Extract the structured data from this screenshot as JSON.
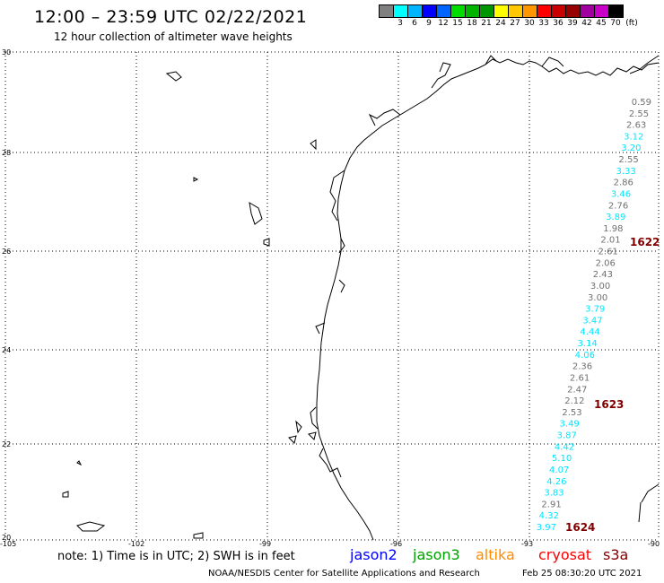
{
  "header": {
    "title": "12:00 – 23:59 UTC 02/22/2021",
    "subtitle": "12 hour collection of altimeter wave heights"
  },
  "legend": {
    "swatches": [
      {
        "color": "#808080",
        "label": ""
      },
      {
        "color": "#00ffff",
        "label": "3"
      },
      {
        "color": "#00b4ff",
        "label": "6"
      },
      {
        "color": "#0000ff",
        "label": "9"
      },
      {
        "color": "#0064ff",
        "label": "12"
      },
      {
        "color": "#00dc00",
        "label": "15"
      },
      {
        "color": "#00b400",
        "label": "18"
      },
      {
        "color": "#009600",
        "label": "21"
      },
      {
        "color": "#ffff00",
        "label": "24"
      },
      {
        "color": "#ffc800",
        "label": "27"
      },
      {
        "color": "#ff9600",
        "label": "30"
      },
      {
        "color": "#ff0000",
        "label": "33"
      },
      {
        "color": "#c80000",
        "label": "36"
      },
      {
        "color": "#960000",
        "label": "39"
      },
      {
        "color": "#a000a0",
        "label": "42"
      },
      {
        "color": "#c800c8",
        "label": "45"
      },
      {
        "color": "#000000",
        "label": "70"
      }
    ],
    "unit": "(ft)"
  },
  "map": {
    "lat_labels": [
      "30",
      "28",
      "26",
      "24",
      "22",
      "20"
    ],
    "lon_labels": [
      "-105",
      "-102",
      "-99",
      "-96",
      "-93",
      "-90"
    ],
    "pass_ids": [
      "1622",
      "1623",
      "1624"
    ],
    "colors": {
      "cyan": "#00e5ff",
      "gray": "#707070",
      "passid": "#800000"
    },
    "wave_heights": [
      {
        "v": "0.59",
        "c": "gray"
      },
      {
        "v": "2.55",
        "c": "gray"
      },
      {
        "v": "2.63",
        "c": "gray"
      },
      {
        "v": "3.12",
        "c": "cyan"
      },
      {
        "v": "3.20",
        "c": "cyan"
      },
      {
        "v": "2.55",
        "c": "gray"
      },
      {
        "v": "3.33",
        "c": "cyan"
      },
      {
        "v": "2.86",
        "c": "gray"
      },
      {
        "v": "3.46",
        "c": "cyan"
      },
      {
        "v": "2.76",
        "c": "gray"
      },
      {
        "v": "3.89",
        "c": "cyan"
      },
      {
        "v": "1.98",
        "c": "gray"
      },
      {
        "v": "2.01",
        "c": "gray"
      },
      {
        "v": "2.61",
        "c": "gray"
      },
      {
        "v": "2.06",
        "c": "gray"
      },
      {
        "v": "2.43",
        "c": "gray"
      },
      {
        "v": "3.00",
        "c": "gray"
      },
      {
        "v": "3.00",
        "c": "gray"
      },
      {
        "v": "3.79",
        "c": "cyan"
      },
      {
        "v": "3.47",
        "c": "cyan"
      },
      {
        "v": "4.44",
        "c": "cyan"
      },
      {
        "v": "3.14",
        "c": "cyan"
      },
      {
        "v": "4.06",
        "c": "cyan"
      },
      {
        "v": "2.36",
        "c": "gray"
      },
      {
        "v": "2.61",
        "c": "gray"
      },
      {
        "v": "2.47",
        "c": "gray"
      },
      {
        "v": "2.12",
        "c": "gray"
      },
      {
        "v": "2.53",
        "c": "gray"
      },
      {
        "v": "3.49",
        "c": "cyan"
      },
      {
        "v": "3.87",
        "c": "cyan"
      },
      {
        "v": "4.42",
        "c": "cyan"
      },
      {
        "v": "5.10",
        "c": "cyan"
      },
      {
        "v": "4.07",
        "c": "cyan"
      },
      {
        "v": "4.26",
        "c": "cyan"
      },
      {
        "v": "3.83",
        "c": "cyan"
      },
      {
        "v": "2.91",
        "c": "gray"
      },
      {
        "v": "4.32",
        "c": "cyan"
      },
      {
        "v": "3.97",
        "c": "cyan"
      }
    ]
  },
  "footer": {
    "note": "note: 1) Time is in UTC; 2) SWH is in feet",
    "satellites": [
      {
        "name": "jason2",
        "color": "#0000ff"
      },
      {
        "name": "jason3",
        "color": "#00a000"
      },
      {
        "name": "altika",
        "color": "#ff8c00"
      },
      {
        "name": "cryosat",
        "color": "#ff0000"
      },
      {
        "name": "s3a",
        "color": "#800000"
      }
    ],
    "credit": "NOAA/NESDIS Center for Satellite Applications and Research",
    "timestamp": "Feb 25 08:30:20 UTC 2021"
  }
}
